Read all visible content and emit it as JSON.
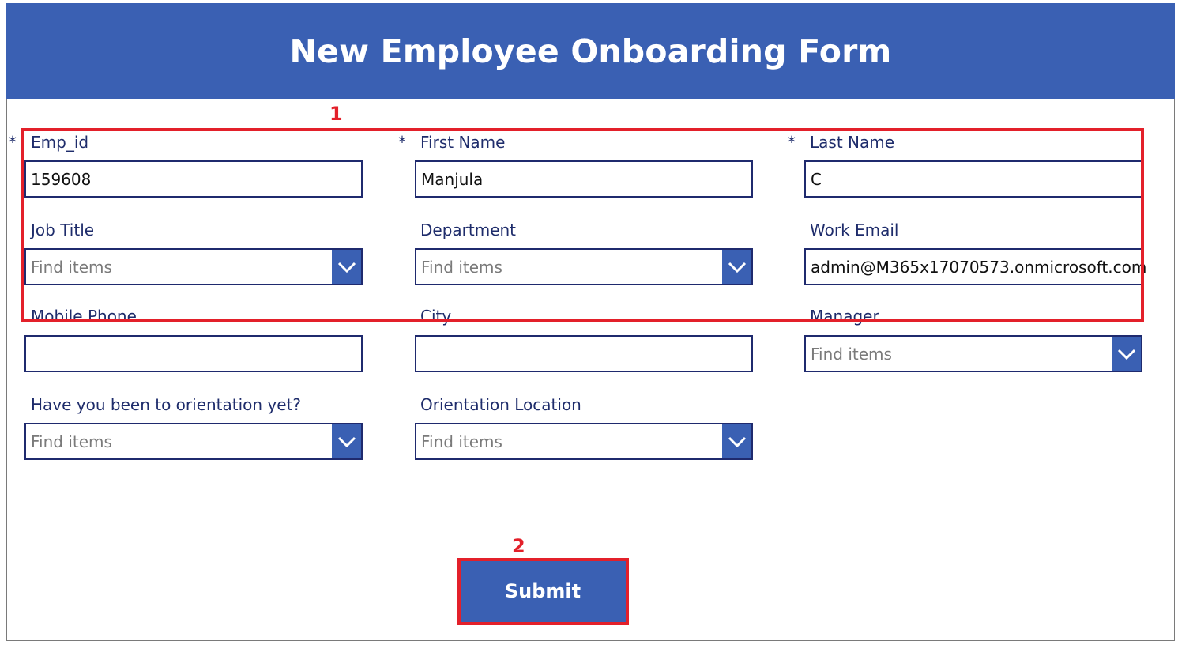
{
  "header": {
    "title": "New Employee Onboarding Form"
  },
  "required_marker": "*",
  "fields": {
    "emp_id": {
      "label": "Emp_id",
      "value": "159608"
    },
    "first_name": {
      "label": "First Name",
      "value": "Manjula"
    },
    "last_name": {
      "label": "Last Name",
      "value": "C"
    },
    "job_title": {
      "label": "Job Title",
      "placeholder": "Find items"
    },
    "department": {
      "label": "Department",
      "placeholder": "Find items"
    },
    "work_email": {
      "label": "Work Email",
      "value": "admin@M365x17070573.onmicrosoft.com"
    },
    "mobile_phone": {
      "label": "Mobile Phone",
      "value": ""
    },
    "city": {
      "label": "City",
      "value": ""
    },
    "manager": {
      "label": "Manager",
      "placeholder": "Find items"
    },
    "orientation": {
      "label": "Have you been to orientation yet?",
      "placeholder": "Find items"
    },
    "orientation_location": {
      "label": "Orientation Location",
      "placeholder": "Find items"
    }
  },
  "submit": {
    "label": "Submit"
  },
  "annotations": {
    "callout_1": "1",
    "callout_2": "2"
  },
  "colors": {
    "header_bg": "#3a60b3",
    "border": "#1f2a6e",
    "label": "#1e2c6b",
    "callout": "#e3202a"
  },
  "icons": {
    "dropdown": "chevron-down-icon"
  }
}
